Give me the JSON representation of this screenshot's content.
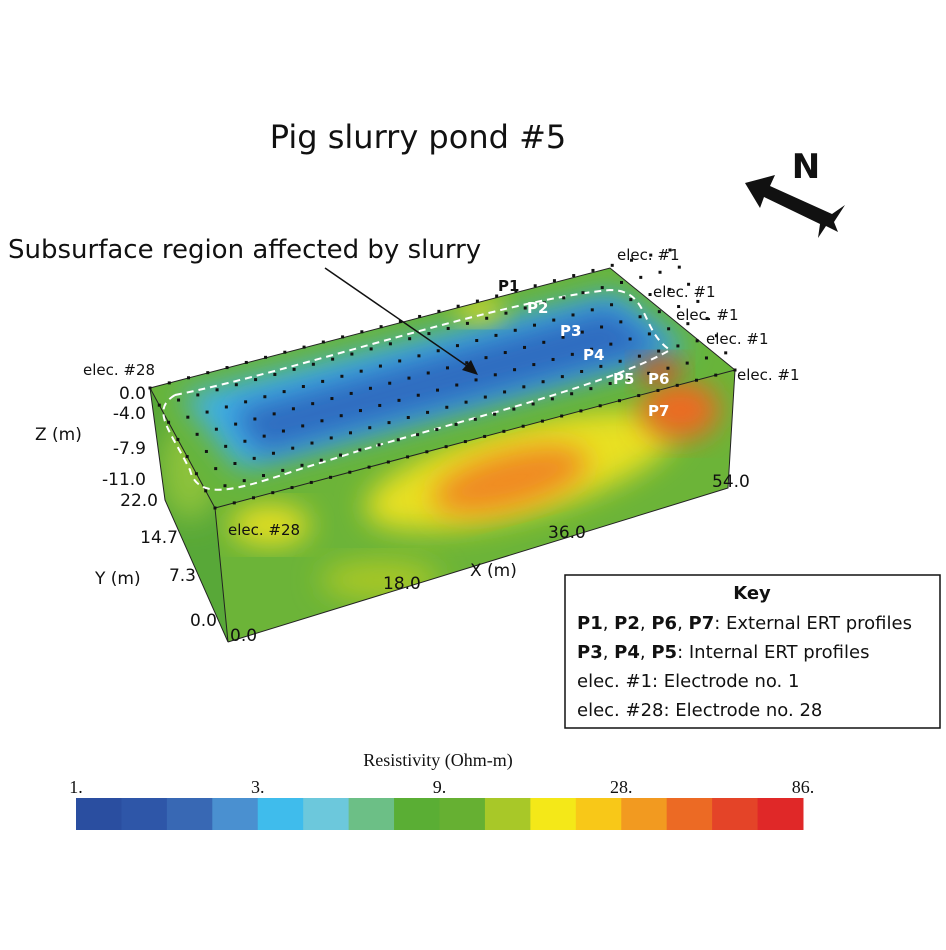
{
  "title": "Pig slurry pond #5",
  "annotation": "Subsurface region affected by slurry",
  "north": "N",
  "electrodes": {
    "e1": "elec. #1",
    "e28": "elec. #28"
  },
  "profiles": [
    "P1",
    "P2",
    "P3",
    "P4",
    "P5",
    "P6",
    "P7"
  ],
  "axes": {
    "z": {
      "label": "Z (m)",
      "ticks": [
        "0.0",
        "-4.0",
        "-7.9",
        "-11.0"
      ]
    },
    "y": {
      "label": "Y (m)",
      "ticks": [
        "22.0",
        "14.7",
        "7.3",
        "0.0"
      ]
    },
    "x": {
      "label": "X (m)",
      "ticks": [
        "0.0",
        "18.0",
        "36.0",
        "54.0"
      ]
    }
  },
  "key": {
    "title": "Key",
    "lines": [
      [
        {
          "text": "P1",
          "bold": true
        },
        {
          "text": ", "
        },
        {
          "text": "P2",
          "bold": true
        },
        {
          "text": ", "
        },
        {
          "text": "P6",
          "bold": true
        },
        {
          "text": ", "
        },
        {
          "text": "P7",
          "bold": true
        },
        {
          "text": ": External ERT profiles"
        }
      ],
      [
        {
          "text": "P3",
          "bold": true
        },
        {
          "text": ", "
        },
        {
          "text": "P4",
          "bold": true
        },
        {
          "text": ", "
        },
        {
          "text": "P5",
          "bold": true
        },
        {
          "text": ": Internal ERT profiles"
        }
      ],
      [
        {
          "text": "elec. #1: Electrode no. 1"
        }
      ],
      [
        {
          "text": "elec. #28: Electrode no. 28"
        }
      ]
    ]
  },
  "colorbar": {
    "label": "Resistivity (Ohm-m)",
    "ticks": [
      "1.",
      "3.",
      "9.",
      "28.",
      "86."
    ],
    "colors": [
      "#2a4ea0",
      "#2e56a8",
      "#3868b4",
      "#4a90d0",
      "#3fbcec",
      "#6cc8dc",
      "#6cbf86",
      "#5aae34",
      "#66b032",
      "#a8c828",
      "#f4e818",
      "#f8c818",
      "#f29a20",
      "#ec6a24",
      "#e44428",
      "#e02828"
    ]
  }
}
